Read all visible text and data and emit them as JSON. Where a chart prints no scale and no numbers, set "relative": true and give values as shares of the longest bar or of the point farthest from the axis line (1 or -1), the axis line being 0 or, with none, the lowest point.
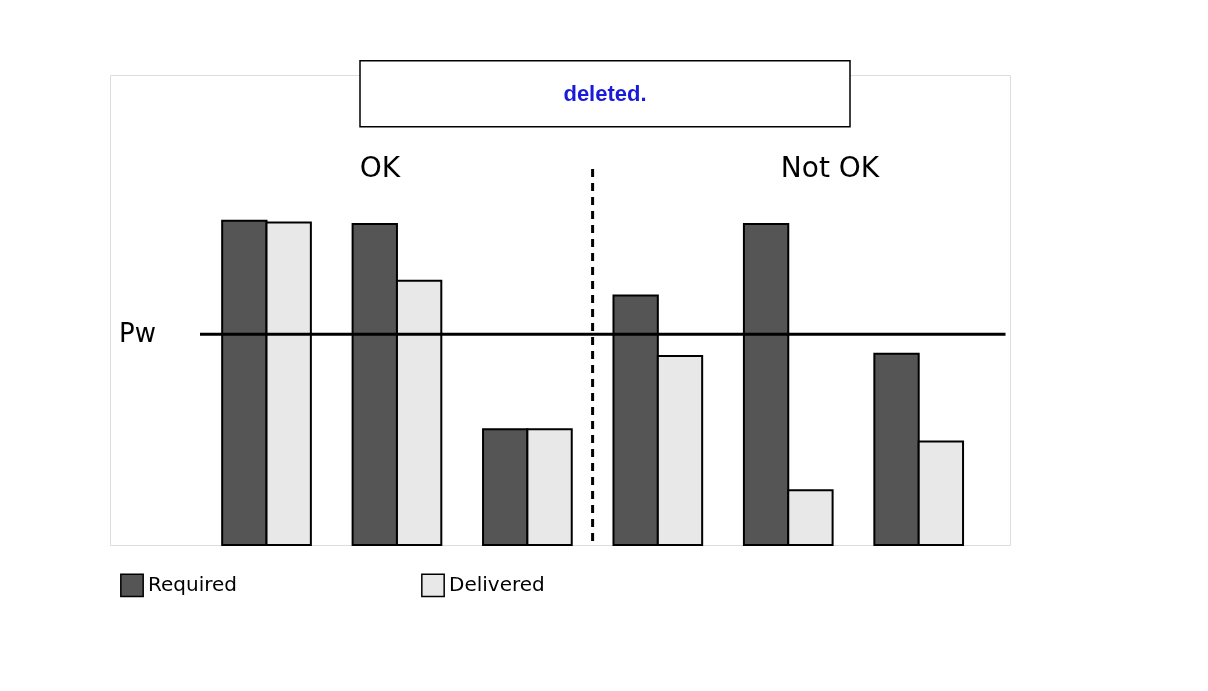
{
  "chart_data": {
    "type": "bar",
    "relative": true,
    "categories": [
      null,
      null,
      null,
      null,
      null,
      null
    ],
    "series": [
      {
        "name": "Required",
        "color": "#555555",
        "values": [
          1.0,
          0.99,
          0.357,
          0.77,
          0.99,
          0.59
        ]
      },
      {
        "name": "Delivered",
        "color": "#e8e8e8",
        "values": [
          0.995,
          0.815,
          0.357,
          0.583,
          0.169,
          0.319
        ]
      }
    ],
    "ref_lines": [
      {
        "axis": "y",
        "value": 0.65,
        "label": "Pw",
        "line_style": "solid"
      }
    ],
    "annotations": [
      "OK",
      "Not OK",
      "deleted."
    ],
    "legend": "bottom",
    "grid": false
  }
}
